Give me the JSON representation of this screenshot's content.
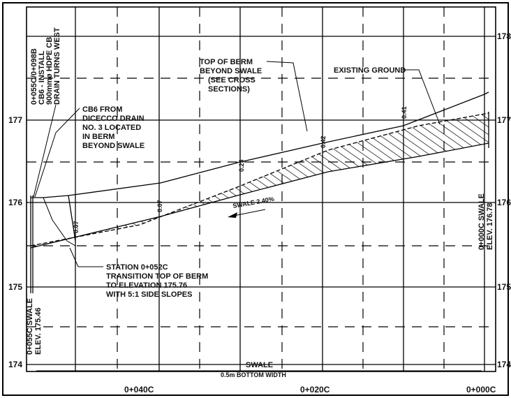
{
  "y_axis": {
    "left_ticks": [
      "177",
      "176",
      "175",
      "174"
    ],
    "right_ticks": [
      "178",
      "177",
      "176",
      "175",
      "174"
    ]
  },
  "x_axis": {
    "ticks": [
      "0+040C",
      "0+020C",
      "0+000C"
    ]
  },
  "labels": {
    "cb6_install": [
      "0+055C/0+098B",
      "CB6 - INSTALL",
      "900mmø HDPE CB",
      "DRAIN TURNS WEST"
    ],
    "cb6_from": [
      "CB6 FROM",
      "DICECCO DRAIN",
      "NO. 3 LOCATED",
      "IN BERM",
      "BEYOND SWALE"
    ],
    "top_of_berm": [
      "TOP OF BERM",
      "BEYOND SWALE",
      "(SEE CROSS",
      "SECTIONS)"
    ],
    "existing_ground": "EXISTING GROUND",
    "swale_slope": "SWALE 2.40%",
    "station_note": [
      "STATION 0+052C",
      "TRANSITION TOP OF BERM",
      "TO ELEVATION 175.76",
      "WITH 5:1 SIDE SLOPES"
    ],
    "left_swale": [
      "0+055C SWALE",
      "ELEV. 175.46"
    ],
    "right_swale": [
      "0+000C SWALE",
      "ELEV. 176.78"
    ],
    "bottom_swale": "SWALE",
    "bottom_width": "0.5m BOTTOM WIDTH"
  },
  "depth_labels": [
    "0.07",
    "0.07",
    "0.25",
    "0.42",
    "0.41"
  ]
}
